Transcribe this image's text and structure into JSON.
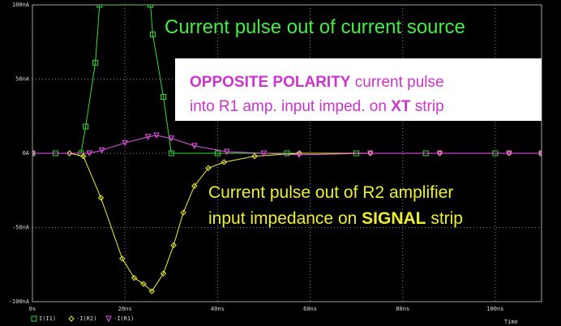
{
  "chart_data": {
    "type": "line",
    "xlabel": "Time",
    "xlim": [
      0,
      110
    ],
    "ylim": [
      -100,
      100
    ],
    "xticks": [
      {
        "value": 0,
        "label": "0s"
      },
      {
        "value": 20,
        "label": "20ns"
      },
      {
        "value": 40,
        "label": "40ns"
      },
      {
        "value": 60,
        "label": "60ns"
      },
      {
        "value": 80,
        "label": "80ns"
      },
      {
        "value": 100,
        "label": "100ns"
      }
    ],
    "yticks": [
      {
        "value": 100,
        "label": "100nA"
      },
      {
        "value": 50,
        "label": "50nA"
      },
      {
        "value": 0,
        "label": "0A"
      },
      {
        "value": -50,
        "label": "-50nA"
      },
      {
        "value": -100,
        "label": "-100nA"
      }
    ],
    "grid": true,
    "series": [
      {
        "name": "I(I1)",
        "color": "#33dd33",
        "marker": "square",
        "x": [
          0,
          5,
          10.5,
          11.5,
          13.6,
          14.5,
          25.5,
          26,
          28.3,
          30,
          40,
          55,
          70,
          85,
          100,
          110
        ],
        "values": [
          0,
          0,
          0,
          18,
          61,
          100,
          100,
          80,
          38,
          0,
          0,
          0,
          0,
          0,
          0,
          0
        ]
      },
      {
        "name": "-I(R2)",
        "color": "#eeee33",
        "marker": "diamond",
        "x": [
          0,
          8,
          11,
          14.8,
          19.4,
          22,
          24,
          25.8,
          28.3,
          30.5,
          32.6,
          35,
          38,
          41.4,
          48,
          57.7,
          73,
          88,
          103,
          110
        ],
        "values": [
          0,
          0,
          -2,
          -30,
          -71,
          -84,
          -88,
          -93,
          -81,
          -62,
          -40,
          -22,
          -10,
          -6,
          -2,
          0,
          0,
          0,
          0,
          0
        ]
      },
      {
        "name": "-I(R1)",
        "color": "#ee55ee",
        "marker": "triangle",
        "x": [
          0,
          12.3,
          15,
          20,
          25,
          26.8,
          30,
          35,
          42,
          50,
          57.6,
          73,
          88,
          103,
          110
        ],
        "values": [
          0,
          0,
          2,
          7,
          11,
          12,
          10,
          5,
          1,
          0,
          -1,
          0,
          0,
          0,
          0
        ]
      }
    ],
    "annotation_top": "Current pulse out of current source",
    "annotation_box": {
      "line1": [
        "OPPOSITE POLARITY",
        " current pulse"
      ],
      "line2": [
        "into R1 amp. input imped. on ",
        "XT",
        " strip"
      ]
    },
    "annotation_bottom": {
      "line1": "Current pulse out of R2 amplifier",
      "line2": [
        "input impedance on ",
        "SIGNAL",
        " strip"
      ]
    }
  }
}
